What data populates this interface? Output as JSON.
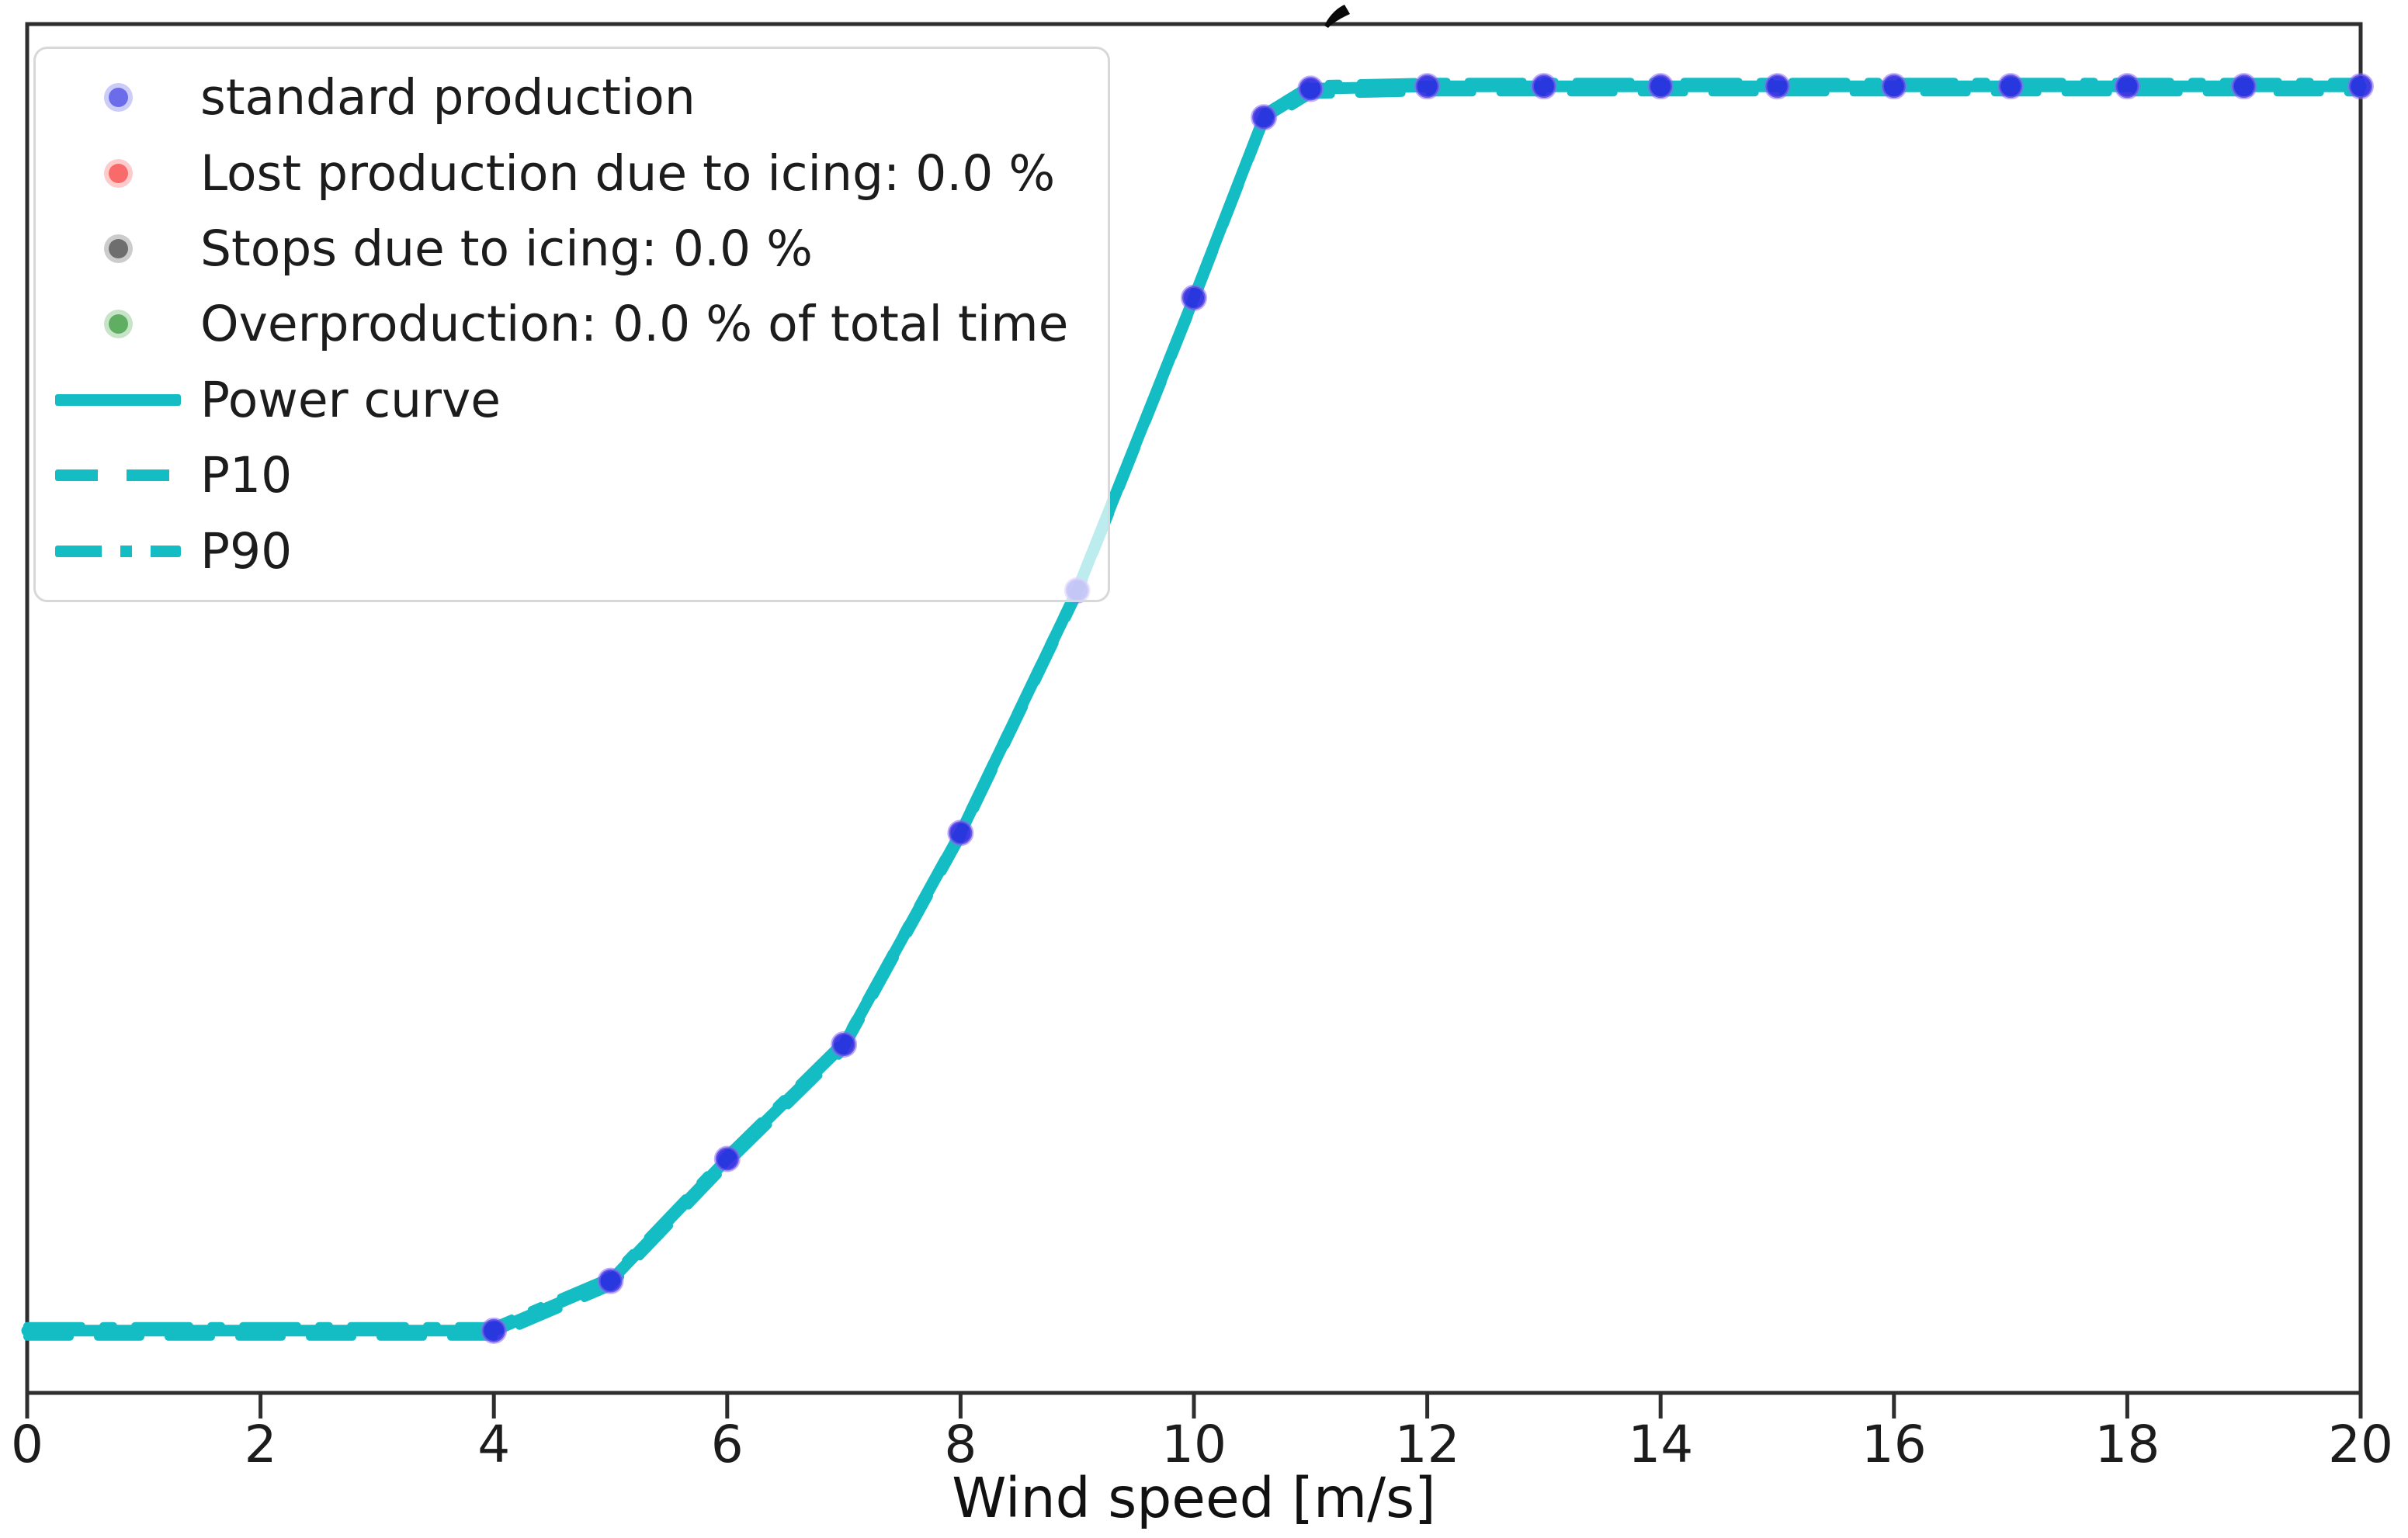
{
  "figure": {
    "background": "#ffffff",
    "clipped_title_fragment": "partial glyph of cropped title above top spine"
  },
  "legend": {
    "position": "upper-left",
    "items": [
      {
        "key": "standard-production",
        "label": "standard production",
        "marker": "dot",
        "color": "#6b6cea"
      },
      {
        "key": "lost-production-icing",
        "label": "Lost production due to icing: 0.0 %",
        "marker": "dot",
        "color": "#f96a6a"
      },
      {
        "key": "stops-icing",
        "label": "Stops due to icing: 0.0 %",
        "marker": "dot",
        "color": "#6e6e6e"
      },
      {
        "key": "overproduction",
        "label": "Overproduction: 0.0 % of total time",
        "marker": "dot",
        "color": "#5fae61"
      },
      {
        "key": "power-curve",
        "label": "Power curve",
        "marker": "line-solid",
        "color": "#14bcc4"
      },
      {
        "key": "p10",
        "label": "P10",
        "marker": "line-dashed",
        "color": "#14bcc4"
      },
      {
        "key": "p90",
        "label": "P90",
        "marker": "line-dashdot",
        "color": "#14bcc4"
      }
    ]
  },
  "chart_data": {
    "type": "line",
    "title": "",
    "xlabel": "Wind speed [m/s]",
    "ylabel": "",
    "xlim": [
      0,
      20
    ],
    "ylim_normalized": [
      -0.05,
      1.05
    ],
    "x_ticks": [
      0,
      2,
      4,
      6,
      8,
      10,
      12,
      14,
      16,
      18,
      20
    ],
    "y_ticks": [],
    "grid": false,
    "legend_position": "upper left",
    "x": [
      0,
      1,
      2,
      3,
      4,
      5,
      6,
      7,
      8,
      9,
      10,
      10.6,
      11,
      12,
      13,
      14,
      15,
      16,
      17,
      18,
      19,
      20
    ],
    "series": [
      {
        "name": "Power curve",
        "style": "solid",
        "color": "#14bcc4",
        "values": [
          0,
          0,
          0,
          0,
          0,
          0.04,
          0.138,
          0.23,
          0.4,
          0.595,
          0.83,
          0.975,
          0.998,
          1,
          1,
          1,
          1,
          1,
          1,
          1,
          1,
          1
        ]
      },
      {
        "name": "P10",
        "style": "dashed",
        "color": "#14bcc4",
        "values": [
          0,
          0,
          0,
          0,
          0,
          0.04,
          0.138,
          0.23,
          0.4,
          0.595,
          0.83,
          0.975,
          0.998,
          1,
          1,
          1,
          1,
          1,
          1,
          1,
          1,
          1
        ]
      },
      {
        "name": "P90",
        "style": "dashdot",
        "color": "#14bcc4",
        "values": [
          0,
          0,
          0,
          0,
          0,
          0.04,
          0.138,
          0.23,
          0.4,
          0.595,
          0.83,
          0.975,
          0.998,
          1,
          1,
          1,
          1,
          1,
          1,
          1,
          1,
          1
        ]
      }
    ],
    "scatter": {
      "name": "standard production",
      "color": "#2b2be0",
      "x": [
        4,
        5,
        6,
        7,
        8,
        9,
        10,
        10.6,
        11,
        12,
        13,
        14,
        15,
        16,
        17,
        18,
        19,
        20
      ],
      "values": [
        0,
        0.04,
        0.138,
        0.23,
        0.4,
        0.595,
        0.83,
        0.975,
        0.998,
        1,
        1,
        1,
        1,
        1,
        1,
        1,
        1,
        1
      ]
    },
    "stats": {
      "lost_production_due_to_icing_pct": 0.0,
      "stops_due_to_icing_pct": 0.0,
      "overproduction_pct_of_total_time": 0.0
    }
  },
  "colors": {
    "power_curve": "#14bcc4",
    "scatter_fill": "#2b2be0",
    "scatter_rim": "#8a6cf0",
    "spine": "#2e2e2e",
    "tick_text": "#1c1c1c",
    "legend_border": "#d8d8d8"
  }
}
